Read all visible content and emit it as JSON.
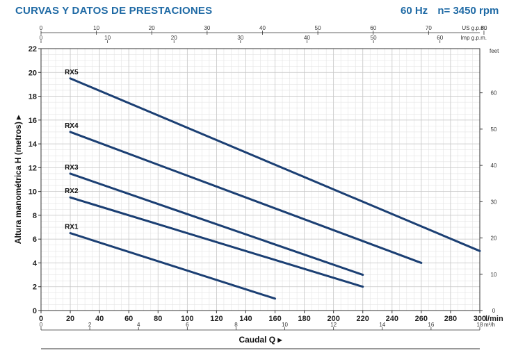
{
  "header": {
    "title": "CURVAS Y DATOS DE PRESTACIONES",
    "frequency": "60 Hz",
    "speed": "n= 3450 rpm"
  },
  "chart_data": {
    "type": "line",
    "title": "CURVAS Y DATOS DE PRESTACIONES",
    "xlabel": "Caudal Q",
    "ylabel": "Altura manométrica H (metros)",
    "x_unit": "l/min",
    "xlim": [
      0,
      300
    ],
    "ylim": [
      0,
      22
    ],
    "x_ticks": [
      0,
      20,
      40,
      60,
      80,
      100,
      120,
      140,
      160,
      180,
      200,
      220,
      240,
      260,
      280,
      300
    ],
    "y_ticks": [
      0,
      2,
      4,
      6,
      8,
      10,
      12,
      14,
      16,
      18,
      20,
      22
    ],
    "grid": true,
    "secondary_axes": {
      "right": {
        "label": "feet",
        "ticks": [
          0,
          10,
          20,
          30,
          40,
          50,
          60
        ]
      },
      "bottom2": {
        "label": "m³/h",
        "ticks": [
          0,
          2,
          4,
          6,
          8,
          10,
          12,
          14,
          16,
          18
        ]
      },
      "top1": {
        "label": "US g.p.m.",
        "ticks": [
          0,
          10,
          20,
          30,
          40,
          50,
          60,
          70,
          80
        ]
      },
      "top2": {
        "label": "Imp g.p.m.",
        "ticks": [
          0,
          10,
          20,
          30,
          40,
          50,
          60
        ]
      }
    },
    "series": [
      {
        "name": "RX1",
        "x": [
          20,
          160
        ],
        "y": [
          6.5,
          1.0
        ]
      },
      {
        "name": "RX2",
        "x": [
          20,
          220
        ],
        "y": [
          9.5,
          2.0
        ]
      },
      {
        "name": "RX3",
        "x": [
          20,
          220
        ],
        "y": [
          11.5,
          3.0
        ]
      },
      {
        "name": "RX4",
        "x": [
          20,
          260
        ],
        "y": [
          15.0,
          4.0
        ]
      },
      {
        "name": "RX5",
        "x": [
          20,
          300
        ],
        "y": [
          19.5,
          5.0
        ]
      }
    ],
    "colors": {
      "curve": "#1b3f73",
      "accent": "#1f6aa5",
      "grid": "#c8c8c8"
    }
  }
}
